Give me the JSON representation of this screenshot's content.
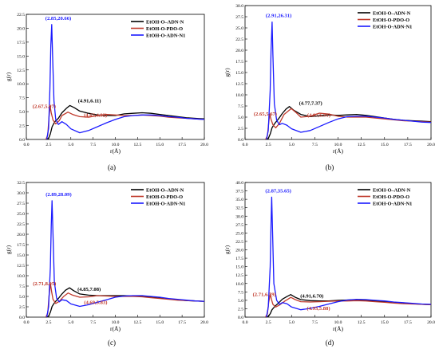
{
  "legend_labels": [
    "EtOH-O–ADN-N",
    "EtOH-O-PDO-O",
    "EtOH-O-ADN-N1"
  ],
  "series_colors": [
    "#000000",
    "#c0392b",
    "#1a1aff"
  ],
  "chart_data": [
    {
      "panel_label": "(a)",
      "type": "line",
      "xlabel": "r(Å)",
      "ylabel": "g(r)",
      "xlim": [
        0,
        20
      ],
      "ylim": [
        0,
        22.5
      ],
      "xticks": [
        "0.0",
        "2.5",
        "5.0",
        "7.5",
        "10.0",
        "12.5",
        "15.0",
        "17.5",
        "20.0"
      ],
      "yticks": [
        "0.0",
        "2.5",
        "5.0",
        "7.5",
        "10.0",
        "12.5",
        "15.0",
        "17.5",
        "20.0",
        "22.5"
      ],
      "legend": "top-right",
      "annotations": [
        {
          "text": "(2.85,20.66)",
          "x": 2.85,
          "y": 20.66,
          "color": "#1a1aff"
        },
        {
          "text": "(2.67,5.97)",
          "x": 2.67,
          "y": 5.97,
          "color": "#c0392b"
        },
        {
          "text": "(4.91,6.11)",
          "x": 4.91,
          "y": 6.11,
          "color": "#000000"
        },
        {
          "text": "(4.67,4.92)",
          "x": 4.67,
          "y": 4.92,
          "color": "#c0392b"
        }
      ],
      "series": [
        {
          "name": "EtOH-O–ADN-N",
          "x": [
            2.2,
            2.5,
            2.7,
            2.9,
            3.2,
            3.6,
            4.0,
            4.5,
            4.9,
            5.4,
            6.0,
            7.0,
            8.0,
            9.0,
            10.0,
            11.0,
            12.0,
            13.0,
            14.0,
            15.0,
            16.0,
            17.0,
            18.0,
            19.0,
            20.0
          ],
          "y": [
            0,
            0.2,
            1.0,
            2.3,
            3.2,
            3.8,
            4.8,
            5.6,
            6.1,
            5.7,
            5.1,
            4.7,
            4.4,
            4.3,
            4.3,
            4.6,
            4.7,
            4.8,
            4.7,
            4.5,
            4.3,
            4.1,
            3.9,
            3.8,
            3.7
          ]
        },
        {
          "name": "EtOH-O-PDO-O",
          "x": [
            2.2,
            2.4,
            2.55,
            2.67,
            2.8,
            3.0,
            3.3,
            3.7,
            4.0,
            4.67,
            5.2,
            6.0,
            7.0,
            8.0,
            9.0,
            10.0,
            11.0,
            12.0,
            13.0,
            14.0,
            15.0,
            16.0,
            17.0,
            18.0,
            19.0,
            20.0
          ],
          "y": [
            0,
            0.8,
            4.0,
            5.97,
            4.8,
            3.5,
            2.8,
            3.4,
            4.3,
            4.92,
            4.5,
            4.1,
            4.0,
            4.3,
            4.5,
            4.4,
            4.3,
            4.3,
            4.4,
            4.3,
            4.2,
            4.0,
            3.9,
            3.8,
            3.7,
            3.6
          ]
        },
        {
          "name": "EtOH-O-ADN-N1",
          "x": [
            2.3,
            2.5,
            2.65,
            2.75,
            2.85,
            2.95,
            3.1,
            3.3,
            3.6,
            4.0,
            4.5,
            5.0,
            6.0,
            7.0,
            8.0,
            9.0,
            10.0,
            11.0,
            12.0,
            13.0,
            14.0,
            15.0,
            16.0,
            17.0,
            18.0,
            19.0,
            20.0
          ],
          "y": [
            0,
            2.0,
            9.0,
            17.0,
            20.66,
            15.0,
            7.0,
            3.6,
            2.7,
            3.2,
            2.7,
            1.9,
            1.2,
            1.6,
            2.3,
            3.0,
            3.6,
            4.1,
            4.3,
            4.4,
            4.4,
            4.3,
            4.1,
            4.0,
            3.8,
            3.7,
            3.6
          ]
        }
      ]
    },
    {
      "panel_label": "(b)",
      "type": "line",
      "xlabel": "r(Å)",
      "ylabel": "g(r)",
      "xlim": [
        0,
        20
      ],
      "ylim": [
        0,
        30
      ],
      "xticks": [
        "0.0",
        "2.5",
        "5.0",
        "7.5",
        "10.0",
        "12.5",
        "15.0",
        "17.5",
        "20.0"
      ],
      "yticks": [
        "0.0",
        "2.5",
        "5.0",
        "7.5",
        "10.0",
        "12.5",
        "15.0",
        "17.5",
        "20.0",
        "22.5",
        "25.0",
        "27.5",
        "30.0"
      ],
      "legend": "top-right",
      "annotations": [
        {
          "text": "(2.91,26.31)",
          "x": 2.91,
          "y": 26.31,
          "color": "#1a1aff"
        },
        {
          "text": "(2.65,5.67)",
          "x": 2.65,
          "y": 5.67,
          "color": "#c0392b"
        },
        {
          "text": "(4.77,7.37)",
          "x": 4.77,
          "y": 7.37,
          "color": "#000000"
        },
        {
          "text": "(4.97,6.91)",
          "x": 4.97,
          "y": 6.91,
          "color": "#c0392b"
        }
      ],
      "series": [
        {
          "name": "EtOH-O–ADN-N",
          "x": [
            2.2,
            2.5,
            2.7,
            2.9,
            3.2,
            3.6,
            4.0,
            4.4,
            4.77,
            5.2,
            6.0,
            7.0,
            8.0,
            9.0,
            10.0,
            11.0,
            12.0,
            13.0,
            14.0,
            15.0,
            16.0,
            17.0,
            18.0,
            19.0,
            20.0
          ],
          "y": [
            0,
            0.2,
            1.2,
            2.6,
            3.6,
            4.6,
            5.8,
            6.8,
            7.37,
            6.6,
            5.6,
            5.1,
            5.3,
            5.5,
            5.4,
            5.5,
            5.6,
            5.4,
            5.1,
            4.8,
            4.5,
            4.3,
            4.2,
            4.1,
            4.0
          ]
        },
        {
          "name": "EtOH-O-PDO-O",
          "x": [
            2.2,
            2.4,
            2.55,
            2.65,
            2.8,
            3.0,
            3.3,
            3.7,
            4.2,
            4.97,
            5.5,
            6.0,
            7.0,
            8.0,
            9.0,
            10.0,
            11.0,
            12.0,
            13.0,
            14.0,
            15.0,
            16.0,
            17.0,
            18.0,
            19.0,
            20.0
          ],
          "y": [
            0,
            0.8,
            3.8,
            5.67,
            4.5,
            3.3,
            2.6,
            3.6,
            5.6,
            6.91,
            6.0,
            5.0,
            5.2,
            5.9,
            5.7,
            5.2,
            5.0,
            5.0,
            5.0,
            4.8,
            4.6,
            4.4,
            4.2,
            4.1,
            4.0,
            3.9
          ]
        },
        {
          "name": "EtOH-O-ADN-N1",
          "x": [
            2.3,
            2.5,
            2.7,
            2.8,
            2.91,
            3.0,
            3.15,
            3.4,
            3.7,
            4.0,
            4.5,
            5.0,
            6.0,
            7.0,
            8.0,
            9.0,
            10.0,
            11.0,
            12.0,
            13.0,
            14.0,
            15.0,
            16.0,
            17.0,
            18.0,
            19.0,
            20.0
          ],
          "y": [
            0,
            2.0,
            11.0,
            20.0,
            26.31,
            19.0,
            8.0,
            4.3,
            3.3,
            3.6,
            3.2,
            2.4,
            1.6,
            2.0,
            2.9,
            3.8,
            4.6,
            5.1,
            5.2,
            5.2,
            5.0,
            4.8,
            4.5,
            4.3,
            4.1,
            3.9,
            3.8
          ]
        }
      ]
    },
    {
      "panel_label": "(c)",
      "type": "line",
      "xlabel": "r(Å)",
      "ylabel": "g(r)",
      "xlim": [
        0,
        20
      ],
      "ylim": [
        0,
        32.5
      ],
      "xticks": [
        "0.0",
        "2.5",
        "5.0",
        "7.5",
        "10.0",
        "12.5",
        "15.0",
        "17.5",
        "20.0"
      ],
      "yticks": [
        "0.0",
        "2.5",
        "5.0",
        "7.5",
        "10.0",
        "12.5",
        "15.0",
        "17.5",
        "20.0",
        "22.5",
        "25.0",
        "27.5",
        "30.0",
        "32.5"
      ],
      "legend": "top-right",
      "annotations": [
        {
          "text": "(2.89,28.09)",
          "x": 2.89,
          "y": 28.09,
          "color": "#1a1aff"
        },
        {
          "text": "(2.71,8.05)",
          "x": 2.71,
          "y": 8.05,
          "color": "#c0392b"
        },
        {
          "text": "(4.85,7.08)",
          "x": 4.85,
          "y": 7.08,
          "color": "#000000"
        },
        {
          "text": "(4.69,5.83)",
          "x": 4.69,
          "y": 5.83,
          "color": "#c0392b"
        }
      ],
      "series": [
        {
          "name": "EtOH-O–ADN-N",
          "x": [
            2.2,
            2.5,
            2.7,
            2.9,
            3.2,
            3.6,
            4.0,
            4.4,
            4.85,
            5.3,
            6.0,
            7.0,
            8.0,
            9.0,
            10.0,
            11.0,
            12.0,
            13.0,
            14.0,
            15.0,
            16.0,
            17.0,
            18.0,
            19.0,
            20.0
          ],
          "y": [
            0,
            0.2,
            1.2,
            2.6,
            3.6,
            4.5,
            5.6,
            6.5,
            7.08,
            6.4,
            5.6,
            5.3,
            5.2,
            5.2,
            5.2,
            5.2,
            5.1,
            5.0,
            4.8,
            4.6,
            4.4,
            4.2,
            4.0,
            3.9,
            3.8
          ]
        },
        {
          "name": "EtOH-O-PDO-O",
          "x": [
            2.2,
            2.4,
            2.55,
            2.71,
            2.85,
            3.0,
            3.3,
            3.7,
            4.2,
            4.69,
            5.2,
            6.0,
            7.0,
            8.0,
            9.0,
            10.0,
            11.0,
            12.0,
            13.0,
            14.0,
            15.0,
            16.0,
            17.0,
            18.0,
            19.0,
            20.0
          ],
          "y": [
            0,
            1.0,
            5.0,
            8.05,
            6.0,
            4.3,
            3.3,
            3.8,
            5.0,
            5.83,
            5.3,
            4.8,
            4.9,
            5.2,
            5.1,
            5.0,
            5.0,
            5.0,
            4.9,
            4.7,
            4.5,
            4.3,
            4.1,
            4.0,
            3.9,
            3.8
          ]
        },
        {
          "name": "EtOH-O-ADN-N1",
          "x": [
            2.3,
            2.5,
            2.7,
            2.8,
            2.89,
            3.0,
            3.15,
            3.4,
            3.7,
            4.0,
            4.5,
            5.0,
            6.0,
            7.0,
            8.0,
            9.0,
            10.0,
            11.0,
            12.0,
            13.0,
            14.0,
            15.0,
            16.0,
            17.0,
            18.0,
            19.0,
            20.0
          ],
          "y": [
            0,
            2.5,
            12.0,
            22.0,
            28.09,
            20.0,
            8.5,
            4.6,
            3.7,
            4.2,
            4.0,
            3.2,
            2.6,
            3.0,
            3.6,
            4.2,
            4.8,
            5.1,
            5.2,
            5.2,
            5.0,
            4.8,
            4.5,
            4.3,
            4.1,
            3.9,
            3.8
          ]
        }
      ]
    },
    {
      "panel_label": "(d)",
      "type": "line",
      "xlabel": "r(Å)",
      "ylabel": "g(r)",
      "xlim": [
        0,
        20
      ],
      "ylim": [
        0,
        40
      ],
      "xticks": [
        "0.0",
        "2.5",
        "5.0",
        "7.5",
        "10.0",
        "12.5",
        "15.0",
        "17.5",
        "20.0"
      ],
      "yticks": [
        "0.0",
        "2.5",
        "5.0",
        "7.5",
        "10.0",
        "12.5",
        "15.0",
        "17.5",
        "20.0",
        "22.5",
        "25.0",
        "27.5",
        "30.0",
        "32.5",
        "35.0",
        "37.5",
        "40.0"
      ],
      "legend": "top-right",
      "annotations": [
        {
          "text": "(2.87,35.65)",
          "x": 2.87,
          "y": 35.65,
          "color": "#1a1aff"
        },
        {
          "text": "(2.71,6.79)",
          "x": 2.71,
          "y": 6.79,
          "color": "#c0392b"
        },
        {
          "text": "(4.91,6.70)",
          "x": 4.91,
          "y": 6.7,
          "color": "#000000"
        },
        {
          "text": "(4.93,5.88)",
          "x": 4.93,
          "y": 5.88,
          "color": "#c0392b"
        }
      ],
      "series": [
        {
          "name": "EtOH-O–ADN-N",
          "x": [
            2.2,
            2.5,
            2.7,
            2.9,
            3.2,
            3.6,
            4.0,
            4.5,
            4.91,
            5.4,
            6.0,
            7.0,
            8.0,
            9.0,
            10.0,
            11.0,
            12.0,
            13.0,
            14.0,
            15.0,
            16.0,
            17.0,
            18.0,
            19.0,
            20.0
          ],
          "y": [
            0,
            0.2,
            1.0,
            2.2,
            3.2,
            4.2,
            5.3,
            6.1,
            6.7,
            5.9,
            5.2,
            4.9,
            4.8,
            4.8,
            5.0,
            5.1,
            5.2,
            5.0,
            4.8,
            4.6,
            4.4,
            4.2,
            4.0,
            3.8,
            3.7
          ]
        },
        {
          "name": "EtOH-O-PDO-O",
          "x": [
            2.2,
            2.4,
            2.55,
            2.71,
            2.85,
            3.0,
            3.3,
            3.7,
            4.3,
            4.93,
            5.4,
            6.0,
            7.0,
            8.0,
            9.0,
            10.0,
            11.0,
            12.0,
            13.0,
            14.0,
            15.0,
            16.0,
            17.0,
            18.0,
            19.0,
            20.0
          ],
          "y": [
            0,
            1.0,
            4.5,
            6.79,
            5.2,
            3.8,
            3.0,
            3.6,
            4.8,
            5.88,
            5.2,
            4.6,
            4.5,
            4.6,
            4.7,
            4.8,
            4.8,
            4.9,
            4.8,
            4.6,
            4.4,
            4.2,
            4.0,
            3.9,
            3.8,
            3.7
          ]
        },
        {
          "name": "EtOH-O-ADN-N1",
          "x": [
            2.3,
            2.5,
            2.7,
            2.8,
            2.87,
            2.95,
            3.1,
            3.4,
            3.7,
            4.0,
            4.5,
            5.0,
            6.0,
            7.0,
            8.0,
            9.0,
            10.0,
            11.0,
            12.0,
            13.0,
            14.0,
            15.0,
            16.0,
            17.0,
            18.0,
            19.0,
            20.0
          ],
          "y": [
            0,
            3.0,
            15.0,
            28.0,
            35.65,
            26.0,
            10.0,
            5.0,
            3.8,
            4.3,
            4.0,
            3.0,
            2.2,
            2.6,
            3.2,
            3.9,
            4.6,
            5.1,
            5.3,
            5.2,
            5.0,
            4.8,
            4.5,
            4.3,
            4.1,
            3.9,
            3.8
          ]
        }
      ]
    }
  ]
}
